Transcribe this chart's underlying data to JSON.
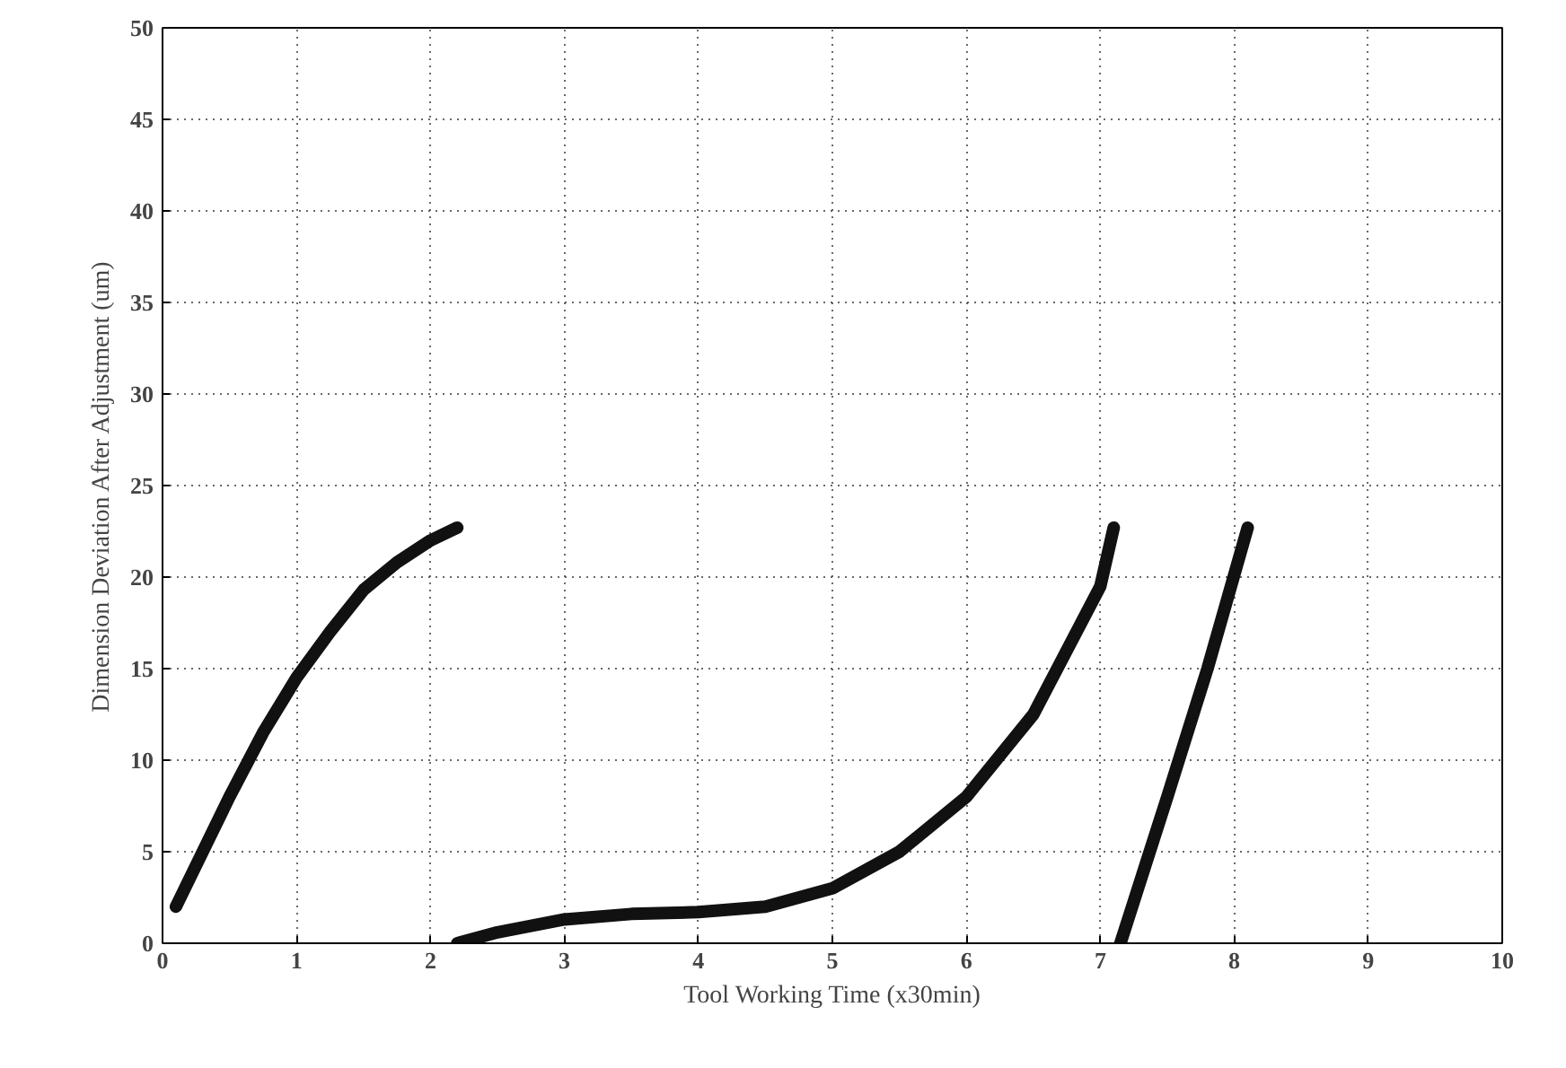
{
  "chart_data": {
    "type": "line",
    "xlabel": "Tool Working Time (x30min)",
    "ylabel": "Dimension Deviation After Adjustment (um)",
    "xlim": [
      0,
      10
    ],
    "ylim": [
      0,
      50
    ],
    "xticks": [
      0,
      1,
      2,
      3,
      4,
      5,
      6,
      7,
      8,
      9,
      10
    ],
    "yticks": [
      0,
      5,
      10,
      15,
      20,
      25,
      30,
      35,
      40,
      45,
      50
    ],
    "grid": true,
    "marker": "none",
    "line_style": "solid",
    "series": [
      {
        "color": "#111111",
        "x": [
          0.1,
          0.3,
          0.5,
          0.75,
          1,
          1.25,
          1.5,
          1.75,
          2,
          2.2
        ],
        "values": [
          2,
          5,
          8,
          11.5,
          14.5,
          17,
          19.3,
          20.8,
          22,
          22.7
        ]
      },
      {
        "color": "#111111",
        "x": [
          2.2,
          2.5,
          3,
          3.5,
          4,
          4.5,
          5,
          5.5,
          6,
          6.5,
          7,
          7.1
        ],
        "values": [
          0,
          0.6,
          1.3,
          1.6,
          1.7,
          2,
          3,
          5,
          8,
          12.5,
          19.5,
          22.7
        ]
      },
      {
        "color": "#111111",
        "x": [
          7.15,
          7.5,
          7.8,
          8.1
        ],
        "values": [
          0,
          8,
          15,
          22.7
        ]
      }
    ]
  }
}
